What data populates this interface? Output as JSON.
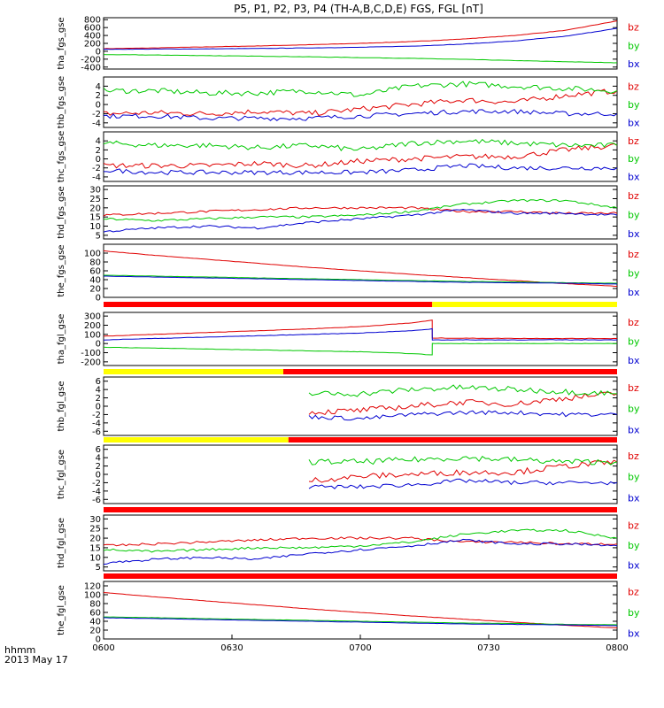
{
  "title": "P5, P1, P2, P3, P4 (TH-A,B,C,D,E) FGS, FGL [nT]",
  "colors": {
    "bz": "#e00000",
    "by": "#00c800",
    "bx": "#0000d0",
    "bar_red": "#ff0000",
    "bar_yellow": "#ffff00"
  },
  "footer": {
    "hhmm": "hhmm",
    "date": "2013 May 17"
  },
  "x_ticks": [
    "0600",
    "0630",
    "0700",
    "0730",
    "0800"
  ],
  "chart_data": [
    {
      "type": "line",
      "ylabel": "tha_fgs_gse",
      "ylim": [
        -450,
        850
      ],
      "yticks": [
        "800",
        "600",
        "400",
        "200",
        "0",
        "-200",
        "-400"
      ],
      "ytick_values": [
        800,
        600,
        400,
        200,
        0,
        -200,
        -400
      ],
      "x": [
        0,
        0.1,
        0.2,
        0.3,
        0.4,
        0.5,
        0.6,
        0.7,
        0.8,
        0.9,
        1.0
      ],
      "series": [
        {
          "name": "bz",
          "values": [
            65,
            85,
            110,
            135,
            165,
            200,
            245,
            310,
            400,
            530,
            770
          ],
          "noise": 4
        },
        {
          "name": "by",
          "values": [
            -85,
            -95,
            -110,
            -125,
            -140,
            -160,
            -180,
            -205,
            -235,
            -265,
            -290
          ],
          "noise": 4
        },
        {
          "name": "bx",
          "values": [
            50,
            55,
            60,
            70,
            85,
            100,
            130,
            180,
            260,
            380,
            580
          ],
          "noise": 4
        }
      ]
    },
    {
      "type": "line",
      "ylabel": "thb_fgs_gse",
      "ylim": [
        -5,
        6
      ],
      "yticks": [
        "4",
        "2",
        "0",
        "-2",
        "-4"
      ],
      "ytick_values": [
        4,
        2,
        0,
        -2,
        -4
      ],
      "x": [
        0,
        0.1,
        0.2,
        0.3,
        0.4,
        0.5,
        0.6,
        0.7,
        0.8,
        0.9,
        1.0
      ],
      "series": [
        {
          "name": "bz",
          "values": [
            -2,
            -1.8,
            -2,
            -1.5,
            -2,
            -1,
            0,
            1,
            0.5,
            2,
            3
          ],
          "noise": 0.6
        },
        {
          "name": "by",
          "values": [
            3,
            3,
            2.5,
            2.5,
            3,
            2,
            4,
            4.5,
            4,
            3.5,
            3
          ],
          "noise": 0.6
        },
        {
          "name": "bx",
          "values": [
            -2.5,
            -2.5,
            -3,
            -3,
            -3,
            -2.5,
            -2,
            -1.5,
            -1.5,
            -2,
            -2
          ],
          "noise": 0.5
        }
      ]
    },
    {
      "type": "line",
      "ylabel": "thc_fgs_gse",
      "ylim": [
        -5,
        6
      ],
      "yticks": [
        "4",
        "2",
        "0",
        "-2",
        "-4"
      ],
      "ytick_values": [
        4,
        2,
        0,
        -2,
        -4
      ],
      "x": [
        0,
        0.1,
        0.2,
        0.3,
        0.4,
        0.5,
        0.6,
        0.7,
        0.8,
        0.9,
        1.0
      ],
      "series": [
        {
          "name": "bz",
          "values": [
            -1.5,
            -1.5,
            -1.5,
            -1,
            -1.5,
            -0.5,
            0,
            0.5,
            0.5,
            2,
            3
          ],
          "noise": 0.6
        },
        {
          "name": "by",
          "values": [
            3.5,
            3,
            3,
            2.5,
            3,
            2,
            3.5,
            4,
            3.5,
            3,
            3
          ],
          "noise": 0.6
        },
        {
          "name": "bx",
          "values": [
            -2.5,
            -3,
            -3,
            -3,
            -3,
            -3,
            -2.5,
            -1.5,
            -2,
            -2,
            -2
          ],
          "noise": 0.5
        }
      ]
    },
    {
      "type": "line",
      "ylabel": "thd_fgs_gse",
      "ylim": [
        3,
        32
      ],
      "yticks": [
        "30",
        "25",
        "20",
        "15",
        "10",
        "5"
      ],
      "ytick_values": [
        30,
        25,
        20,
        15,
        10,
        5
      ],
      "x": [
        0,
        0.1,
        0.2,
        0.3,
        0.4,
        0.5,
        0.6,
        0.7,
        0.8,
        0.9,
        1.0
      ],
      "series": [
        {
          "name": "bz",
          "values": [
            16,
            17,
            18,
            19,
            20,
            20,
            20,
            18,
            18,
            17,
            17
          ],
          "noise": 0.6
        },
        {
          "name": "by",
          "values": [
            14,
            13,
            14,
            15,
            15,
            16,
            18,
            22,
            24,
            24,
            20
          ],
          "noise": 0.6
        },
        {
          "name": "bx",
          "values": [
            7,
            9,
            10,
            9,
            12,
            14,
            16,
            19,
            17,
            17,
            16
          ],
          "noise": 0.6
        }
      ]
    },
    {
      "type": "line",
      "ylabel": "the_fgs_gse",
      "ylim": [
        0,
        120
      ],
      "yticks": [
        "100",
        "80",
        "60",
        "40",
        "20",
        "0"
      ],
      "ytick_values": [
        100,
        80,
        60,
        40,
        20,
        0
      ],
      "x": [
        0,
        0.1,
        0.2,
        0.3,
        0.4,
        0.5,
        0.6,
        0.7,
        0.8,
        0.9,
        1.0
      ],
      "series": [
        {
          "name": "bz",
          "values": [
            105,
            95,
            86,
            77,
            68,
            60,
            52,
            45,
            38,
            31,
            25
          ],
          "noise": 0.3
        },
        {
          "name": "by",
          "values": [
            50,
            48,
            46,
            44,
            42,
            40,
            38,
            36,
            35,
            33,
            32
          ],
          "noise": 0.3
        },
        {
          "name": "bx",
          "values": [
            48,
            46,
            44,
            42,
            40,
            38,
            36,
            34,
            33,
            32,
            30
          ],
          "noise": 0.3
        }
      ]
    },
    {
      "type": "line",
      "ylabel": "tha_fgl_gse",
      "ylim": [
        -240,
        340
      ],
      "yticks": [
        "300",
        "200",
        "100",
        "0",
        "-100",
        "-200"
      ],
      "ytick_values": [
        300,
        200,
        100,
        0,
        -100,
        -200
      ],
      "x": [
        0,
        0.1,
        0.2,
        0.3,
        0.4,
        0.5,
        0.6,
        0.64,
        0.6401,
        0.7,
        0.8,
        0.9,
        1.0
      ],
      "series": [
        {
          "name": "bz",
          "values": [
            80,
            100,
            120,
            140,
            160,
            185,
            225,
            255,
            60,
            58,
            56,
            55,
            55
          ],
          "noise": 2
        },
        {
          "name": "by",
          "values": [
            -40,
            -50,
            -60,
            -70,
            -80,
            -90,
            -110,
            -125,
            0,
            0,
            0,
            0,
            0
          ],
          "noise": 2
        },
        {
          "name": "bx",
          "values": [
            40,
            55,
            70,
            85,
            100,
            115,
            140,
            160,
            40,
            40,
            40,
            40,
            40
          ],
          "noise": 2
        }
      ]
    },
    {
      "type": "line",
      "ylabel": "thb_fgl_gse",
      "ylim": [
        -7,
        7
      ],
      "yticks": [
        "6",
        "4",
        "2",
        "0",
        "-2",
        "-4",
        "-6"
      ],
      "ytick_values": [
        6,
        4,
        2,
        0,
        -2,
        -4,
        -6
      ],
      "x": [
        0.4,
        0.5,
        0.6,
        0.7,
        0.8,
        0.9,
        1.0
      ],
      "series": [
        {
          "name": "bz",
          "values": [
            -1.5,
            -1,
            0,
            1,
            0.5,
            2,
            3
          ],
          "noise": 0.7
        },
        {
          "name": "by",
          "values": [
            3,
            3,
            4,
            4.5,
            4,
            3.5,
            3
          ],
          "noise": 0.7
        },
        {
          "name": "bx",
          "values": [
            -2.5,
            -3,
            -2,
            -1.5,
            -1.5,
            -2,
            -2
          ],
          "noise": 0.5
        }
      ]
    },
    {
      "type": "line",
      "ylabel": "thc_fgl_gse",
      "ylim": [
        -7,
        7
      ],
      "yticks": [
        "6",
        "4",
        "2",
        "0",
        "-2",
        "-4",
        "-6"
      ],
      "ytick_values": [
        6,
        4,
        2,
        0,
        -2,
        -4,
        -6
      ],
      "x": [
        0.4,
        0.5,
        0.6,
        0.7,
        0.8,
        0.9,
        1.0
      ],
      "series": [
        {
          "name": "bz",
          "values": [
            -1.5,
            -0.5,
            0,
            0.5,
            0.5,
            2,
            3
          ],
          "noise": 0.7
        },
        {
          "name": "by",
          "values": [
            3,
            3,
            3.5,
            4,
            3.5,
            3,
            3
          ],
          "noise": 0.7
        },
        {
          "name": "bx",
          "values": [
            -3,
            -3,
            -2.5,
            -1.5,
            -2,
            -2,
            -2
          ],
          "noise": 0.5
        }
      ]
    },
    {
      "type": "line",
      "ylabel": "thd_fgl_gse",
      "ylim": [
        3,
        32
      ],
      "yticks": [
        "30",
        "25",
        "20",
        "15",
        "10",
        "5"
      ],
      "ytick_values": [
        30,
        25,
        20,
        15,
        10,
        5
      ],
      "x": [
        0,
        0.1,
        0.2,
        0.3,
        0.4,
        0.5,
        0.6,
        0.7,
        0.8,
        0.9,
        1.0
      ],
      "series": [
        {
          "name": "bz",
          "values": [
            16,
            17,
            18,
            19,
            20,
            20,
            20,
            18,
            18,
            17,
            17
          ],
          "noise": 0.6
        },
        {
          "name": "by",
          "values": [
            14,
            13,
            14,
            15,
            15,
            16,
            18,
            22,
            24,
            24,
            20
          ],
          "noise": 0.6
        },
        {
          "name": "bx",
          "values": [
            7,
            9,
            10,
            9,
            12,
            14,
            16,
            19,
            17,
            17,
            16
          ],
          "noise": 0.6
        }
      ]
    },
    {
      "type": "line",
      "ylabel": "the_fgl_gse",
      "ylim": [
        0,
        130
      ],
      "yticks": [
        "120",
        "100",
        "80",
        "60",
        "40",
        "20",
        "0"
      ],
      "ytick_values": [
        120,
        100,
        80,
        60,
        40,
        20,
        0
      ],
      "x": [
        0,
        0.1,
        0.2,
        0.3,
        0.4,
        0.5,
        0.6,
        0.7,
        0.8,
        0.9,
        1.0
      ],
      "series": [
        {
          "name": "bz",
          "values": [
            105,
            95,
            86,
            77,
            68,
            60,
            52,
            45,
            38,
            31,
            25
          ],
          "noise": 0.3
        },
        {
          "name": "by",
          "values": [
            50,
            48,
            46,
            44,
            42,
            40,
            38,
            36,
            35,
            33,
            32
          ],
          "noise": 0.3
        },
        {
          "name": "bx",
          "values": [
            48,
            46,
            44,
            42,
            40,
            38,
            36,
            34,
            33,
            32,
            30
          ],
          "noise": 0.3
        }
      ]
    }
  ],
  "mode_bars": [
    {
      "segments": [
        {
          "from": 0,
          "to": 0.64,
          "color": "bar_red"
        },
        {
          "from": 0.64,
          "to": 1.0,
          "color": "bar_yellow"
        }
      ]
    },
    {
      "segments": [
        {
          "from": 0,
          "to": 0.35,
          "color": "bar_yellow"
        },
        {
          "from": 0.35,
          "to": 1.0,
          "color": "bar_red"
        }
      ]
    },
    {
      "segments": [
        {
          "from": 0,
          "to": 0.36,
          "color": "bar_yellow"
        },
        {
          "from": 0.36,
          "to": 1.0,
          "color": "bar_red"
        }
      ]
    },
    {
      "segments": [
        {
          "from": 0,
          "to": 1.0,
          "color": "bar_red"
        }
      ]
    },
    {
      "segments": [
        {
          "from": 0,
          "to": 1.0,
          "color": "bar_red"
        }
      ]
    }
  ]
}
